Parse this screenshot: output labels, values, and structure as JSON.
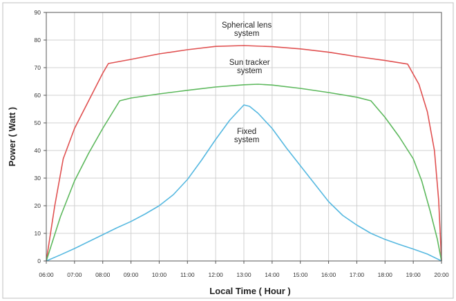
{
  "chart_data": {
    "type": "line",
    "ylabel": "Power ( Watt )",
    "xlabel": "Local Time ( Hour )",
    "x_ticks": [
      "06:00",
      "07:00",
      "08:00",
      "09:00",
      "10:00",
      "11:00",
      "12:00",
      "13:00",
      "14:00",
      "15:00",
      "16:00",
      "17:00",
      "18:00",
      "19:00",
      "20:00"
    ],
    "y_ticks": [
      0,
      10,
      20,
      30,
      40,
      50,
      60,
      70,
      80,
      90
    ],
    "xlim": [
      6,
      20
    ],
    "ylim": [
      0,
      90
    ],
    "grid": true,
    "series": [
      {
        "name": "Spherical lens system",
        "label_lines": [
          "Spherical lens",
          "system"
        ],
        "color": "#e05050",
        "points": [
          [
            6.0,
            0
          ],
          [
            6.3,
            20
          ],
          [
            6.6,
            37
          ],
          [
            7.0,
            48
          ],
          [
            7.5,
            58
          ],
          [
            8.0,
            68
          ],
          [
            8.2,
            71.5
          ],
          [
            9,
            73
          ],
          [
            10,
            75
          ],
          [
            11,
            76.5
          ],
          [
            12,
            77.7
          ],
          [
            13,
            78
          ],
          [
            14,
            77.6
          ],
          [
            15,
            76.8
          ],
          [
            16,
            75.6
          ],
          [
            17,
            74
          ],
          [
            18,
            72.6
          ],
          [
            18.8,
            71.3
          ],
          [
            19.2,
            64
          ],
          [
            19.5,
            54
          ],
          [
            19.75,
            40
          ],
          [
            19.9,
            22
          ],
          [
            20.0,
            0
          ]
        ]
      },
      {
        "name": "Sun tracker system",
        "label_lines": [
          "Sun tracker",
          "system"
        ],
        "color": "#5cb85c",
        "points": [
          [
            6.0,
            0
          ],
          [
            6.5,
            16
          ],
          [
            7.0,
            29
          ],
          [
            7.5,
            39
          ],
          [
            8.0,
            48
          ],
          [
            8.6,
            58
          ],
          [
            9,
            59
          ],
          [
            10,
            60.5
          ],
          [
            11,
            61.8
          ],
          [
            12,
            63
          ],
          [
            13,
            63.8
          ],
          [
            13.5,
            64
          ],
          [
            14,
            63.7
          ],
          [
            15,
            62.5
          ],
          [
            16,
            61
          ],
          [
            17,
            59.3
          ],
          [
            17.5,
            58
          ],
          [
            18,
            52
          ],
          [
            18.5,
            45
          ],
          [
            19,
            37
          ],
          [
            19.3,
            29
          ],
          [
            19.6,
            18
          ],
          [
            19.85,
            8
          ],
          [
            20.0,
            0
          ]
        ]
      },
      {
        "name": "Fixed system",
        "label_lines": [
          "Fixed",
          "system"
        ],
        "color": "#55b8e0",
        "points": [
          [
            6.0,
            0
          ],
          [
            6.5,
            2.2
          ],
          [
            7,
            4.5
          ],
          [
            7.5,
            7
          ],
          [
            8,
            9.5
          ],
          [
            8.5,
            12
          ],
          [
            9,
            14.3
          ],
          [
            9.5,
            17
          ],
          [
            10,
            20
          ],
          [
            10.5,
            24
          ],
          [
            11,
            29.5
          ],
          [
            11.5,
            36.5
          ],
          [
            12,
            44
          ],
          [
            12.5,
            51
          ],
          [
            13,
            56.5
          ],
          [
            13.2,
            56
          ],
          [
            13.5,
            53.5
          ],
          [
            14,
            48
          ],
          [
            14.5,
            41
          ],
          [
            15,
            34.5
          ],
          [
            15.5,
            28
          ],
          [
            16,
            21.5
          ],
          [
            16.5,
            16.5
          ],
          [
            17,
            13
          ],
          [
            17.5,
            10
          ],
          [
            18,
            7.8
          ],
          [
            18.5,
            6
          ],
          [
            19,
            4.3
          ],
          [
            19.5,
            2.5
          ],
          [
            20.0,
            0
          ]
        ]
      }
    ],
    "annotations": []
  }
}
